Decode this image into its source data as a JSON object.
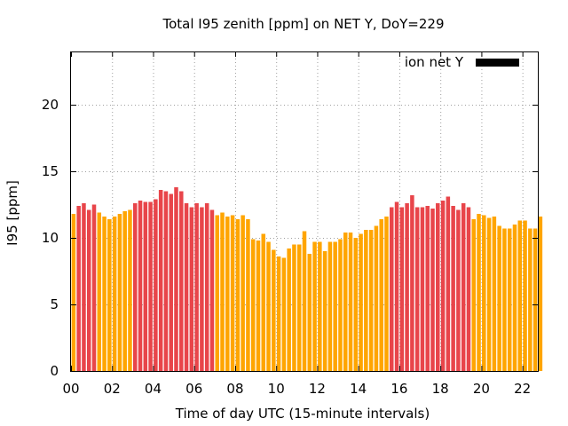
{
  "chart_data": {
    "type": "bar",
    "title": "Total I95 zenith [ppm] on NET Y, DoY=229",
    "xlabel": "Time of day UTC (15-minute intervals)",
    "ylabel": "I95 [ppm]",
    "ylim": [
      0,
      24
    ],
    "xlim": [
      0,
      22.75
    ],
    "yticks": [
      0,
      5,
      10,
      15,
      20
    ],
    "ytick_labels": [
      "0",
      "5",
      "10",
      "15",
      "20"
    ],
    "xticks": [
      0,
      2,
      4,
      6,
      8,
      10,
      12,
      14,
      16,
      18,
      20,
      22
    ],
    "xtick_labels": [
      "00",
      "02",
      "04",
      "06",
      "08",
      "10",
      "12",
      "14",
      "16",
      "18",
      "20",
      "22"
    ],
    "grid": true,
    "legend": {
      "label": "ion net Y",
      "color": "#000000",
      "placement": "top-right"
    },
    "colors": {
      "red": "#e8454a",
      "orange": "#ffa500"
    },
    "interval_hours": 0.25,
    "values": [
      11.8,
      12.4,
      12.6,
      12.1,
      12.5,
      11.9,
      11.6,
      11.4,
      11.6,
      11.8,
      12.0,
      12.1,
      12.6,
      12.8,
      12.7,
      12.7,
      12.9,
      13.6,
      13.5,
      13.3,
      13.8,
      13.5,
      12.6,
      12.3,
      12.6,
      12.3,
      12.6,
      12.1,
      11.7,
      11.9,
      11.6,
      11.7,
      11.4,
      11.7,
      11.4,
      9.9,
      9.8,
      10.3,
      9.7,
      9.1,
      8.6,
      8.5,
      9.2,
      9.5,
      9.5,
      10.5,
      8.8,
      9.7,
      9.7,
      9.0,
      9.7,
      9.7,
      9.9,
      10.4,
      10.4,
      10.0,
      10.3,
      10.6,
      10.6,
      10.9,
      11.4,
      11.6,
      12.3,
      12.7,
      12.3,
      12.6,
      13.2,
      12.3,
      12.3,
      12.4,
      12.2,
      12.6,
      12.8,
      13.1,
      12.4,
      12.1,
      12.6,
      12.3,
      11.4,
      11.8,
      11.7,
      11.5,
      11.6,
      10.9,
      10.7,
      10.7,
      11.0,
      11.3,
      11.3,
      10.7,
      10.7,
      11.6
    ],
    "bar_colors": [
      "orange",
      "red",
      "red",
      "red",
      "red",
      "orange",
      "orange",
      "orange",
      "orange",
      "orange",
      "orange",
      "orange",
      "red",
      "red",
      "red",
      "red",
      "red",
      "red",
      "red",
      "red",
      "red",
      "red",
      "red",
      "red",
      "red",
      "red",
      "red",
      "red",
      "orange",
      "orange",
      "orange",
      "orange",
      "orange",
      "orange",
      "orange",
      "orange",
      "orange",
      "orange",
      "orange",
      "orange",
      "orange",
      "orange",
      "orange",
      "orange",
      "orange",
      "orange",
      "orange",
      "orange",
      "orange",
      "orange",
      "orange",
      "orange",
      "orange",
      "orange",
      "orange",
      "orange",
      "orange",
      "orange",
      "orange",
      "orange",
      "orange",
      "orange",
      "red",
      "red",
      "red",
      "red",
      "red",
      "red",
      "red",
      "red",
      "red",
      "red",
      "red",
      "red",
      "red",
      "red",
      "red",
      "red",
      "orange",
      "orange",
      "orange",
      "orange",
      "orange",
      "orange",
      "orange",
      "orange",
      "orange",
      "orange",
      "orange",
      "orange",
      "orange",
      "orange"
    ]
  }
}
